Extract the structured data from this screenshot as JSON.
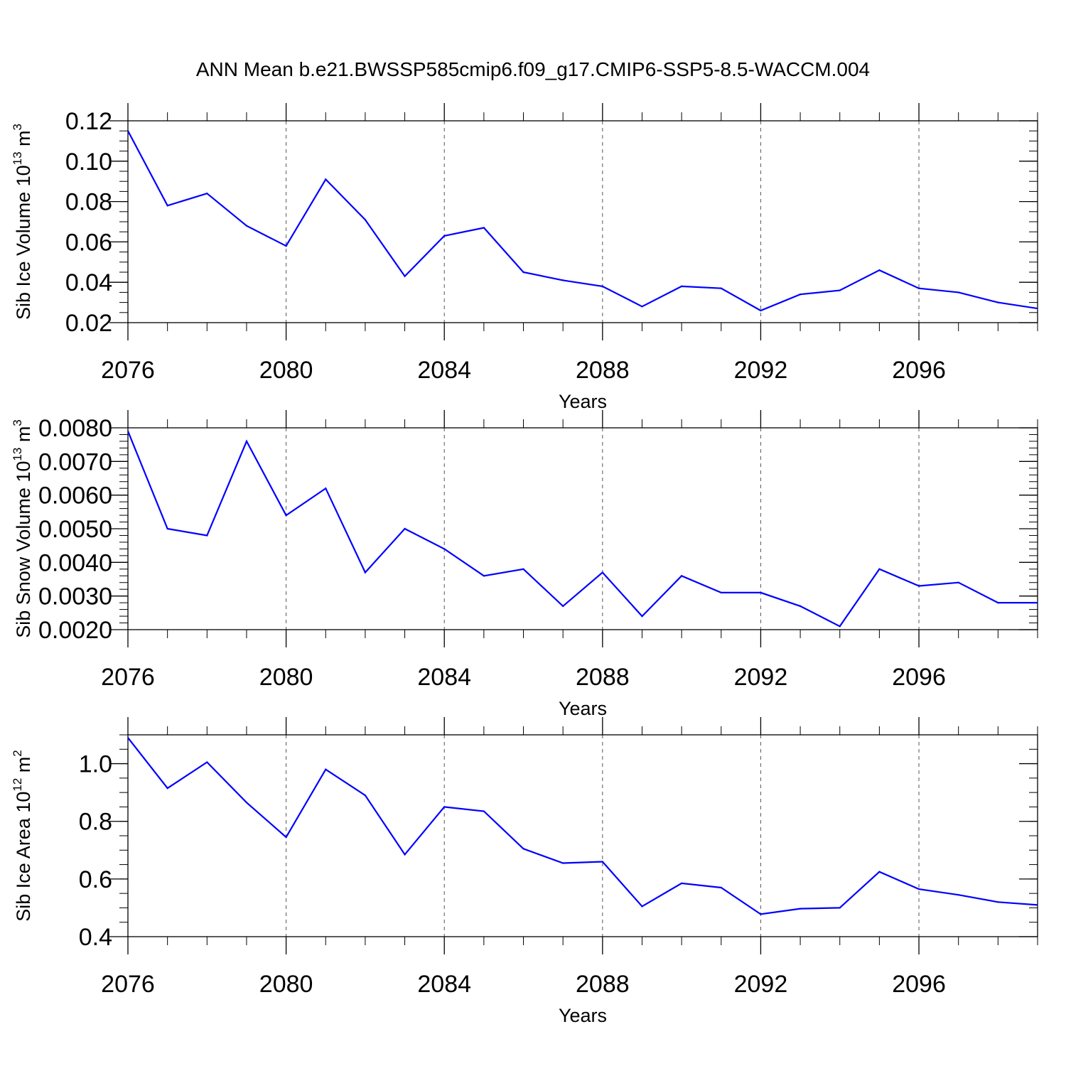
{
  "title": "ANN Mean b.e21.BWSSP585cmip6.f09_g17.CMIP6-SSP5-8.5-WACCM.004",
  "colors": {
    "line": "#0000ff",
    "axis": "#000000",
    "grid": "#555555"
  },
  "chart_data": [
    {
      "type": "line",
      "name": "sib-ice-volume",
      "ylabel": {
        "text": "Sib Ice Volume 10",
        "exp": "13",
        "unit": " m",
        "unit_exp": "3"
      },
      "xlabel": "Years",
      "xlim": [
        2076,
        2099
      ],
      "xticks": [
        2076,
        2080,
        2084,
        2088,
        2092,
        2096
      ],
      "xtick_labels": [
        "2076",
        "2080",
        "2084",
        "2088",
        "2092",
        "2096"
      ],
      "ylim": [
        0.02,
        0.12
      ],
      "yticks": [
        0.02,
        0.04,
        0.06,
        0.08,
        0.1,
        0.12
      ],
      "ytick_labels": [
        "0.02",
        "0.04",
        "0.06",
        "0.08",
        "0.10",
        "0.12"
      ],
      "yminor_step": 0.005,
      "grid": "vertical dashed at major x ticks",
      "x": [
        2076,
        2077,
        2078,
        2079,
        2080,
        2081,
        2082,
        2083,
        2084,
        2085,
        2086,
        2087,
        2088,
        2089,
        2090,
        2091,
        2092,
        2093,
        2094,
        2095,
        2096,
        2097,
        2098,
        2099
      ],
      "values": [
        0.115,
        0.078,
        0.084,
        0.068,
        0.058,
        0.091,
        0.071,
        0.043,
        0.063,
        0.067,
        0.045,
        0.041,
        0.038,
        0.028,
        0.038,
        0.037,
        0.026,
        0.034,
        0.036,
        0.046,
        0.037,
        0.035,
        0.03,
        0.027
      ]
    },
    {
      "type": "line",
      "name": "sib-snow-volume",
      "ylabel": {
        "text": "Sib Snow Volume 10",
        "exp": "13",
        "unit": " m",
        "unit_exp": "3"
      },
      "xlabel": "Years",
      "xlim": [
        2076,
        2099
      ],
      "xticks": [
        2076,
        2080,
        2084,
        2088,
        2092,
        2096
      ],
      "xtick_labels": [
        "2076",
        "2080",
        "2084",
        "2088",
        "2092",
        "2096"
      ],
      "ylim": [
        0.002,
        0.008
      ],
      "yticks": [
        0.002,
        0.003,
        0.004,
        0.005,
        0.006,
        0.007,
        0.008
      ],
      "ytick_labels": [
        "0.0020",
        "0.0030",
        "0.0040",
        "0.0050",
        "0.0060",
        "0.0070",
        "0.0080"
      ],
      "yminor_step": 0.0002,
      "grid": "vertical dashed at major x ticks",
      "x": [
        2076,
        2077,
        2078,
        2079,
        2080,
        2081,
        2082,
        2083,
        2084,
        2085,
        2086,
        2087,
        2088,
        2089,
        2090,
        2091,
        2092,
        2093,
        2094,
        2095,
        2096,
        2097,
        2098,
        2099
      ],
      "values": [
        0.0079,
        0.005,
        0.0048,
        0.0076,
        0.0054,
        0.0062,
        0.0037,
        0.005,
        0.0044,
        0.0036,
        0.0038,
        0.0027,
        0.0037,
        0.0024,
        0.0036,
        0.0031,
        0.0031,
        0.0027,
        0.0021,
        0.0038,
        0.0033,
        0.0034,
        0.0028,
        0.0028
      ]
    },
    {
      "type": "line",
      "name": "sib-ice-area",
      "ylabel": {
        "text": "Sib Ice Area 10",
        "exp": "12",
        "unit": " m",
        "unit_exp": "2"
      },
      "xlabel": "Years",
      "xlim": [
        2076,
        2099
      ],
      "xticks": [
        2076,
        2080,
        2084,
        2088,
        2092,
        2096
      ],
      "xtick_labels": [
        "2076",
        "2080",
        "2084",
        "2088",
        "2092",
        "2096"
      ],
      "ylim": [
        0.4,
        1.1
      ],
      "yticks": [
        0.4,
        0.6,
        0.8,
        1.0
      ],
      "ytick_labels": [
        "0.4",
        "0.6",
        "0.8",
        "1.0"
      ],
      "yminor_step": 0.05,
      "grid": "vertical dashed at major x ticks",
      "x": [
        2076,
        2077,
        2078,
        2079,
        2080,
        2081,
        2082,
        2083,
        2084,
        2085,
        2086,
        2087,
        2088,
        2089,
        2090,
        2091,
        2092,
        2093,
        2094,
        2095,
        2096,
        2097,
        2098,
        2099
      ],
      "values": [
        1.09,
        0.915,
        1.005,
        0.865,
        0.745,
        0.98,
        0.89,
        0.685,
        0.85,
        0.835,
        0.705,
        0.655,
        0.66,
        0.505,
        0.585,
        0.57,
        0.478,
        0.497,
        0.5,
        0.625,
        0.565,
        0.545,
        0.52,
        0.51
      ]
    }
  ]
}
